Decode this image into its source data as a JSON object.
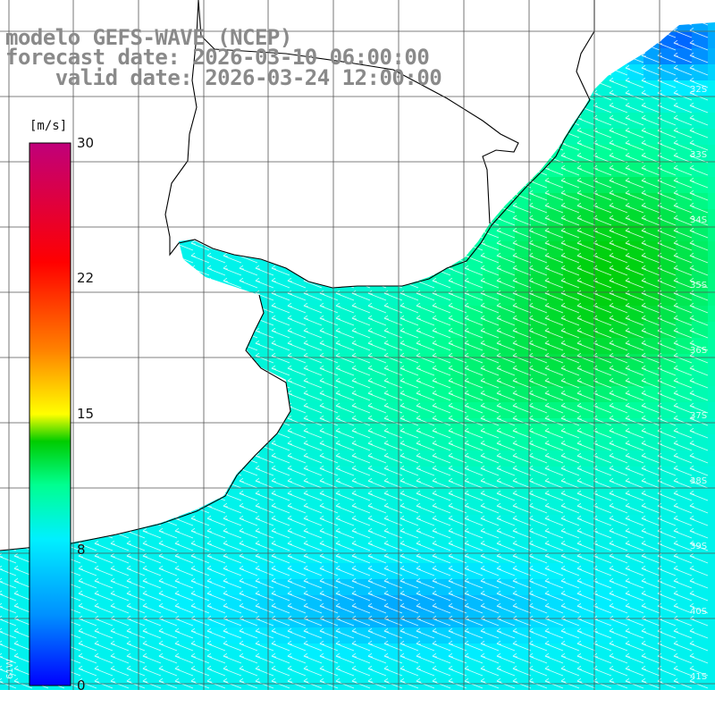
{
  "title": {
    "line1": "modelo GEFS-WAVE (NCEP)",
    "line2": "forecast date: 2026-03-10 06:00:00",
    "line3": "    valid date: 2026-03-24 12:00:00"
  },
  "colorbar": {
    "unit": "[m/s]",
    "ticks": [
      "30",
      "22",
      "15",
      "8",
      "0"
    ],
    "tick_values": [
      30,
      22,
      15,
      8,
      0
    ],
    "colors": [
      "#0000ff",
      "#0080ff",
      "#00e5ff",
      "#00ff80",
      "#00cc00",
      "#ffff00",
      "#ff8000",
      "#ff0000",
      "#c0007a"
    ]
  },
  "map": {
    "land_color": "#ffffff",
    "grid_color": "#555555",
    "lat_labels": [
      "32S",
      "33S",
      "34S",
      "35S",
      "36S",
      "37S",
      "38S",
      "39S",
      "40S",
      "41S"
    ],
    "lon_labels": [
      "61W"
    ],
    "wind_direction": "from south-east"
  }
}
